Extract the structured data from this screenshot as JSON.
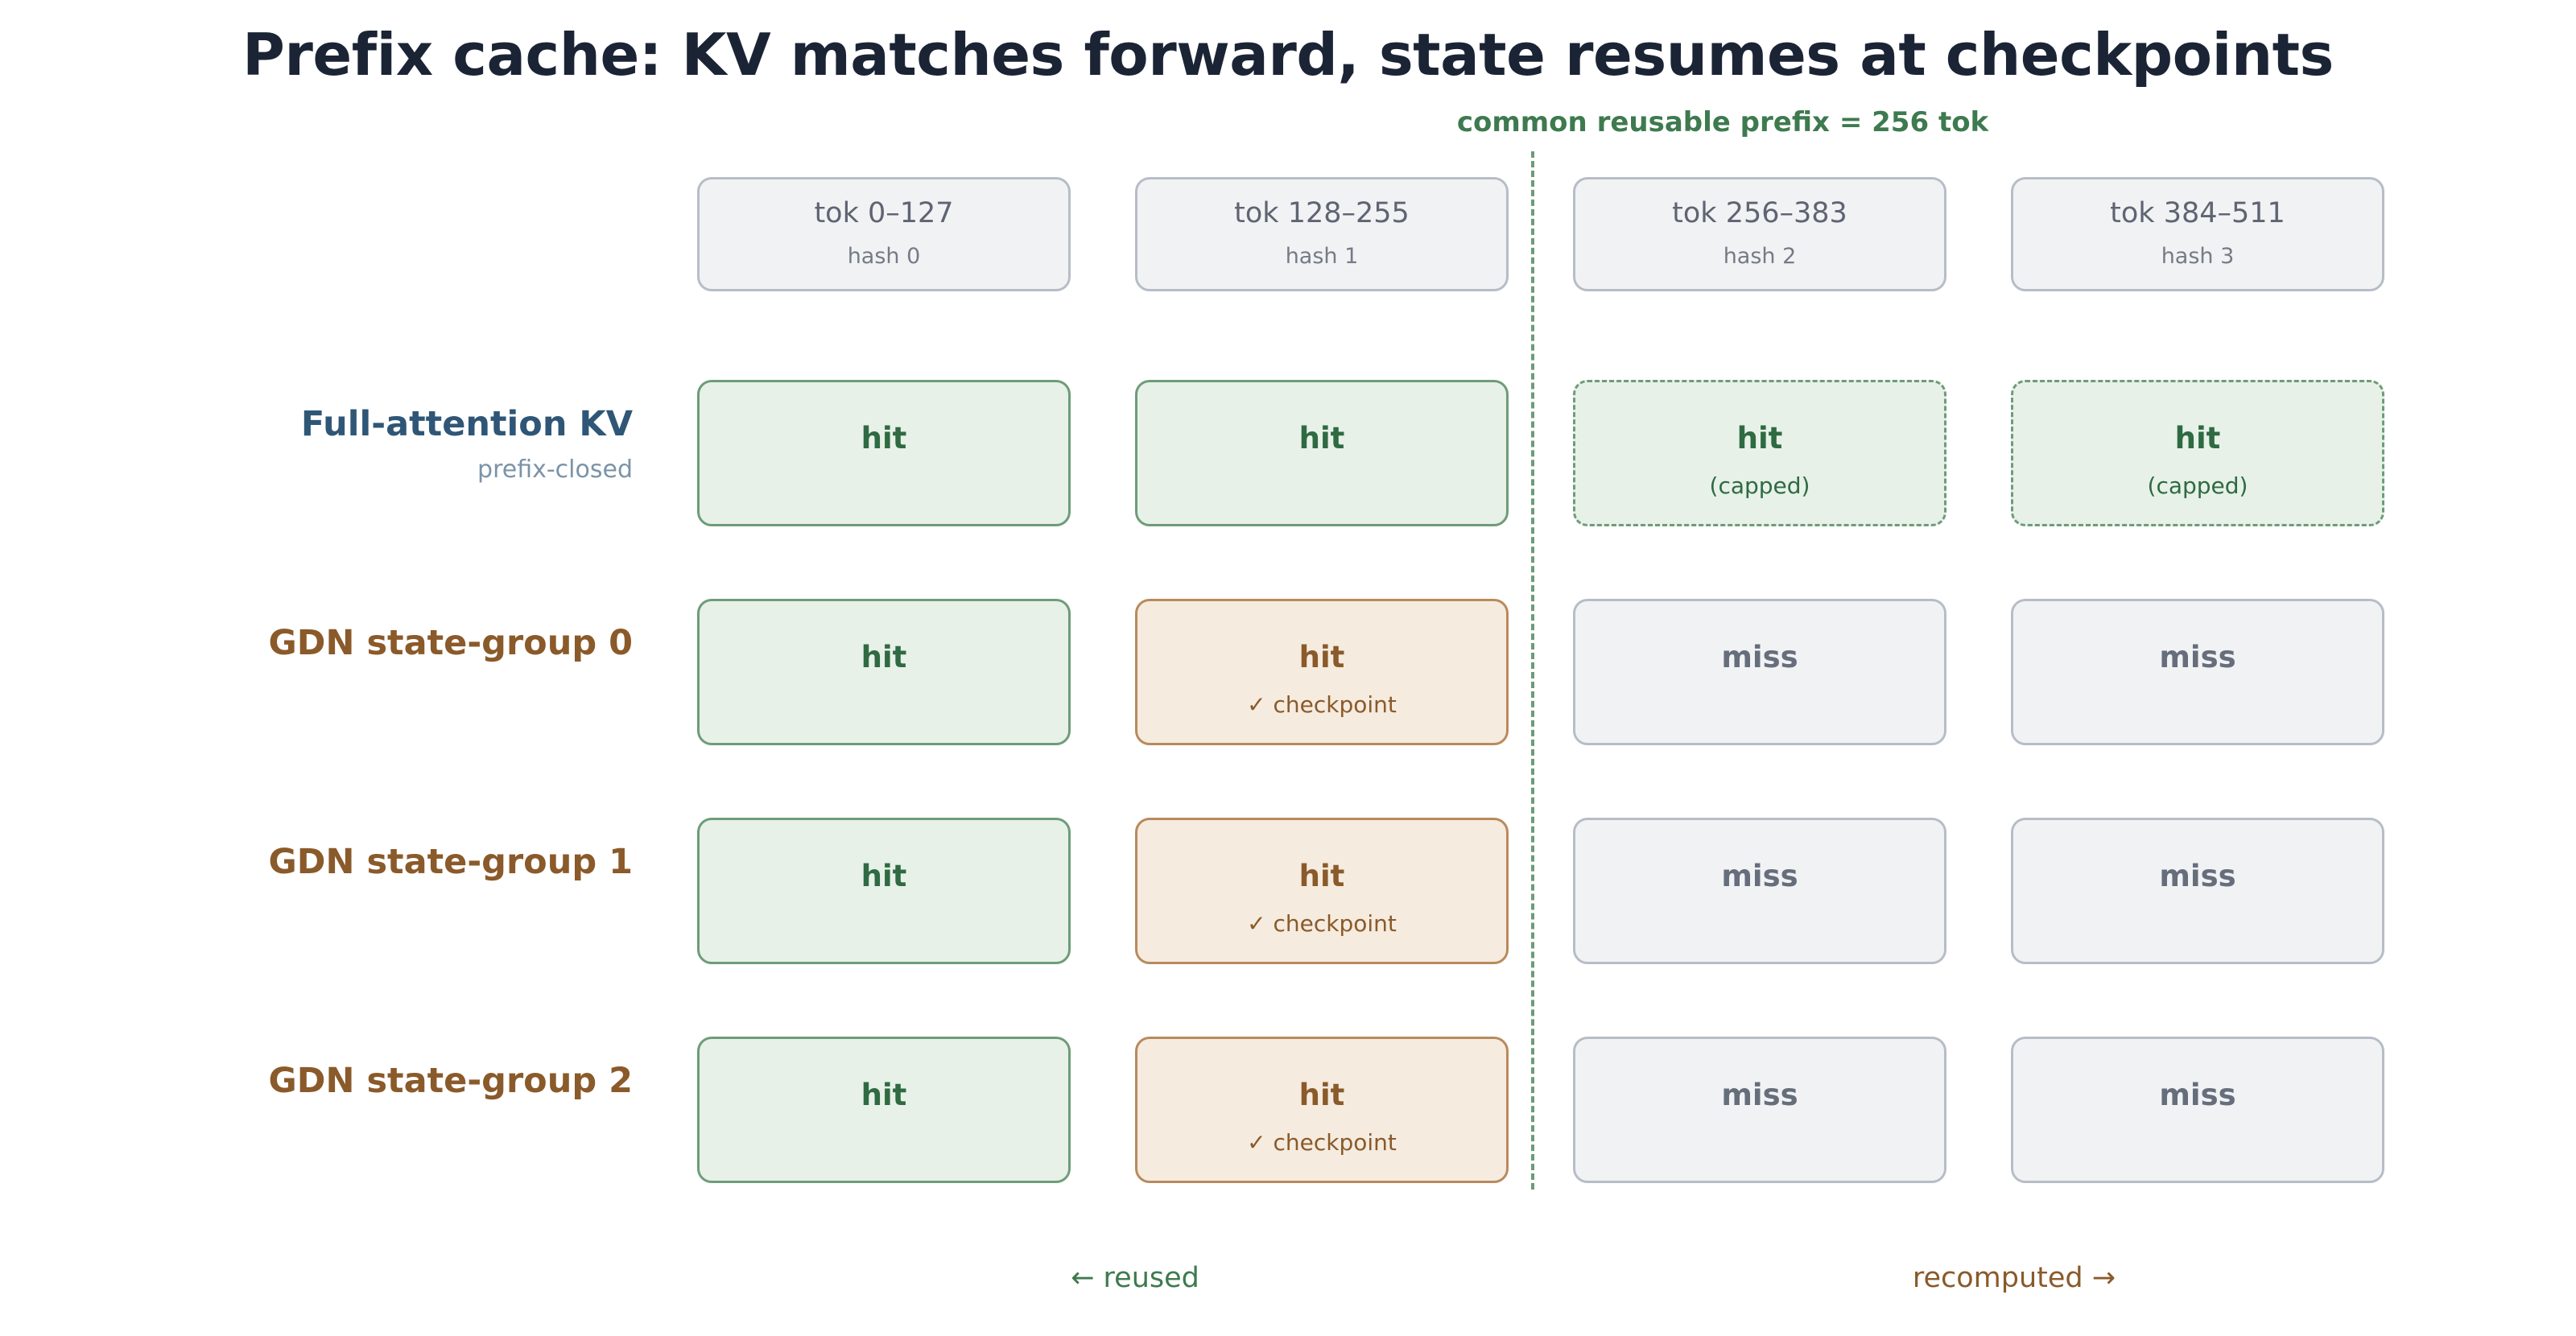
{
  "title": "Prefix cache: KV matches forward, state resumes at checkpoints",
  "prefix_label": "common reusable prefix = 256 tok",
  "columns": [
    {
      "tokens": "tok 0–127",
      "hash": "hash 0"
    },
    {
      "tokens": "tok 128–255",
      "hash": "hash 1"
    },
    {
      "tokens": "tok 256–383",
      "hash": "hash 2"
    },
    {
      "tokens": "tok 384–511",
      "hash": "hash 3"
    }
  ],
  "rows": [
    {
      "label": "Full-attention KV",
      "sublabel": "prefix-closed",
      "cells": [
        {
          "status": "hit",
          "note": ""
        },
        {
          "status": "hit",
          "note": ""
        },
        {
          "status": "hit",
          "note": "(capped)"
        },
        {
          "status": "hit",
          "note": "(capped)"
        }
      ]
    },
    {
      "label": "GDN state-group 0",
      "cells": [
        {
          "status": "hit",
          "note": ""
        },
        {
          "status": "hit",
          "note": "✓ checkpoint"
        },
        {
          "status": "miss",
          "note": ""
        },
        {
          "status": "miss",
          "note": ""
        }
      ]
    },
    {
      "label": "GDN state-group 1",
      "cells": [
        {
          "status": "hit",
          "note": ""
        },
        {
          "status": "hit",
          "note": "✓ checkpoint"
        },
        {
          "status": "miss",
          "note": ""
        },
        {
          "status": "miss",
          "note": ""
        }
      ]
    },
    {
      "label": "GDN state-group 2",
      "cells": [
        {
          "status": "hit",
          "note": ""
        },
        {
          "status": "hit",
          "note": "✓ checkpoint"
        },
        {
          "status": "miss",
          "note": ""
        },
        {
          "status": "miss",
          "note": ""
        }
      ]
    }
  ],
  "footer": {
    "reused": "← reused",
    "recomputed": "recomputed →"
  },
  "colors": {
    "hit_green": "#2f6a42",
    "checkpoint_brown": "#8a5a2a",
    "miss_gray": "#666e7c",
    "kv_blue": "#2f5676"
  }
}
